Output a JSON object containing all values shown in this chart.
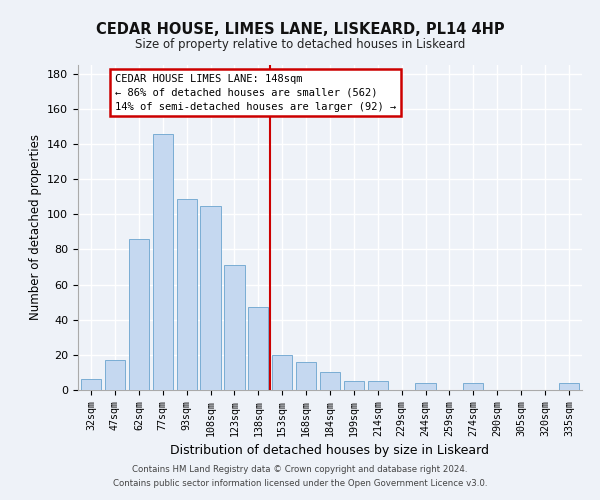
{
  "title": "CEDAR HOUSE, LIMES LANE, LISKEARD, PL14 4HP",
  "subtitle": "Size of property relative to detached houses in Liskeard",
  "xlabel": "Distribution of detached houses by size in Liskeard",
  "ylabel": "Number of detached properties",
  "bar_labels": [
    "32sqm",
    "47sqm",
    "62sqm",
    "77sqm",
    "93sqm",
    "108sqm",
    "123sqm",
    "138sqm",
    "153sqm",
    "168sqm",
    "184sqm",
    "199sqm",
    "214sqm",
    "229sqm",
    "244sqm",
    "259sqm",
    "274sqm",
    "290sqm",
    "305sqm",
    "320sqm",
    "335sqm"
  ],
  "bar_values": [
    6,
    17,
    86,
    146,
    109,
    105,
    71,
    47,
    20,
    16,
    10,
    5,
    5,
    0,
    4,
    0,
    4,
    0,
    0,
    0,
    4
  ],
  "bar_color": "#c5d8f0",
  "bar_edge_color": "#7aadd4",
  "ylim": [
    0,
    185
  ],
  "yticks": [
    0,
    20,
    40,
    60,
    80,
    100,
    120,
    140,
    160,
    180
  ],
  "vline_x_index": 7.5,
  "annotation_title": "CEDAR HOUSE LIMES LANE: 148sqm",
  "annotation_line1": "← 86% of detached houses are smaller (562)",
  "annotation_line2": "14% of semi-detached houses are larger (92) →",
  "annotation_box_color": "#ffffff",
  "annotation_box_edge": "#cc0000",
  "vline_color": "#cc0000",
  "background_color": "#eef2f8",
  "grid_color": "#ffffff",
  "footer1": "Contains HM Land Registry data © Crown copyright and database right 2024.",
  "footer2": "Contains public sector information licensed under the Open Government Licence v3.0."
}
